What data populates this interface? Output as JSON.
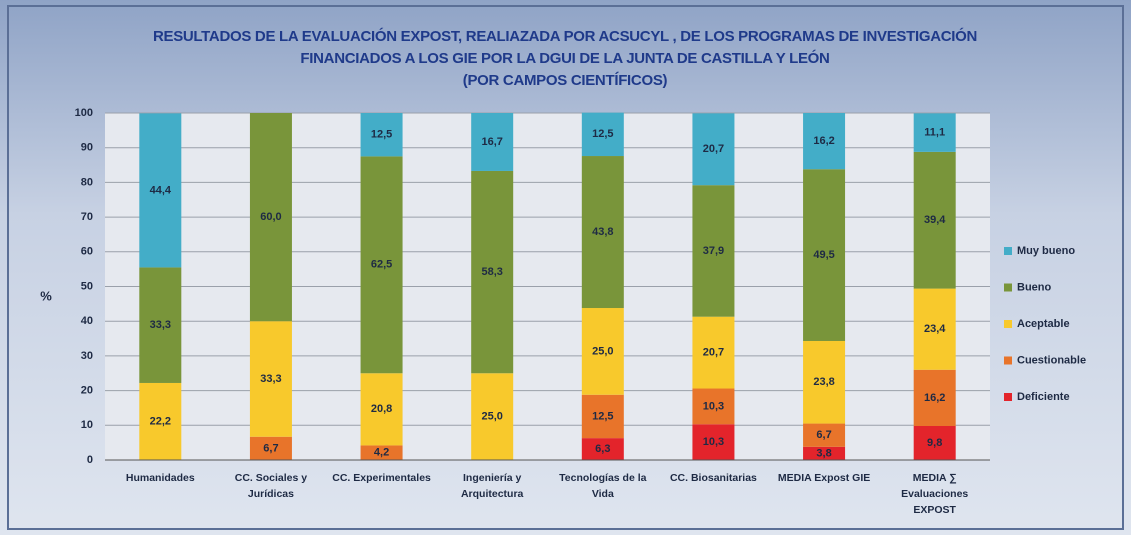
{
  "chart_data": {
    "type": "stacked_bar",
    "title": "RESULTADOS DE LA EVALUACIÓN EXPOST, REALIAZADA POR ACSUCYL , DE LOS PROGRAMAS DE INVESTIGACIÓN FINANCIADOS A LOS GIE POR LA DGUI DE LA JUNTA DE CASTILLA Y LEÓN",
    "subtitle": "(POR CAMPOS CIENTÍFICOS)",
    "y_label": "%",
    "categories": [
      "Humanidades",
      "CC. Sociales y Jurídicas",
      "CC. Experimentales",
      "Ingeniería y Arquitectura",
      "Tecnologías de la Vida",
      "CC. Biosanitarias",
      "MEDIA Expost GIE",
      "MEDIA ∑ Evaluaciones EXPOST"
    ],
    "series": [
      {
        "name": "Deficiente",
        "color": "#e3242b",
        "values": [
          null,
          null,
          null,
          null,
          6.3,
          10.3,
          3.8,
          9.8
        ],
        "value_labels": [
          null,
          null,
          null,
          null,
          "6,3",
          "10,3",
          "3,8",
          "9,8"
        ]
      },
      {
        "name": "Cuestionable",
        "color": "#e8742a",
        "values": [
          null,
          6.7,
          4.2,
          null,
          12.5,
          10.3,
          6.7,
          16.2
        ],
        "value_labels": [
          null,
          "6,7",
          "4,2",
          null,
          "12,5",
          "10,3",
          "6,7",
          "16,2"
        ]
      },
      {
        "name": "Aceptable",
        "color": "#f8c92c",
        "values": [
          22.2,
          33.3,
          20.8,
          25.0,
          25.0,
          20.7,
          23.8,
          23.4
        ],
        "value_labels": [
          "22,2",
          "33,3",
          "20,8",
          "25,0",
          "25,0",
          "20,7",
          "23,8",
          "23,4"
        ]
      },
      {
        "name": "Bueno",
        "color": "#79953a",
        "values": [
          33.3,
          60.0,
          62.5,
          58.3,
          43.8,
          37.9,
          49.5,
          39.4
        ],
        "value_labels": [
          "33,3",
          "60,0",
          "62,5",
          "58,3",
          "43,8",
          "37,9",
          "49,5",
          "39,4"
        ]
      },
      {
        "name": "Muy bueno",
        "color": "#43adc8",
        "values": [
          44.4,
          null,
          12.5,
          16.7,
          12.5,
          20.7,
          16.2,
          11.1
        ],
        "value_labels": [
          "44,4",
          null,
          "12,5",
          "16,7",
          "12,5",
          "20,7",
          "16,2",
          "11,1"
        ]
      }
    ],
    "ylim": [
      0,
      100
    ],
    "yticks": [
      0,
      10,
      20,
      30,
      40,
      50,
      60,
      70,
      80,
      90,
      100
    ],
    "grid": true,
    "legend": "right"
  }
}
